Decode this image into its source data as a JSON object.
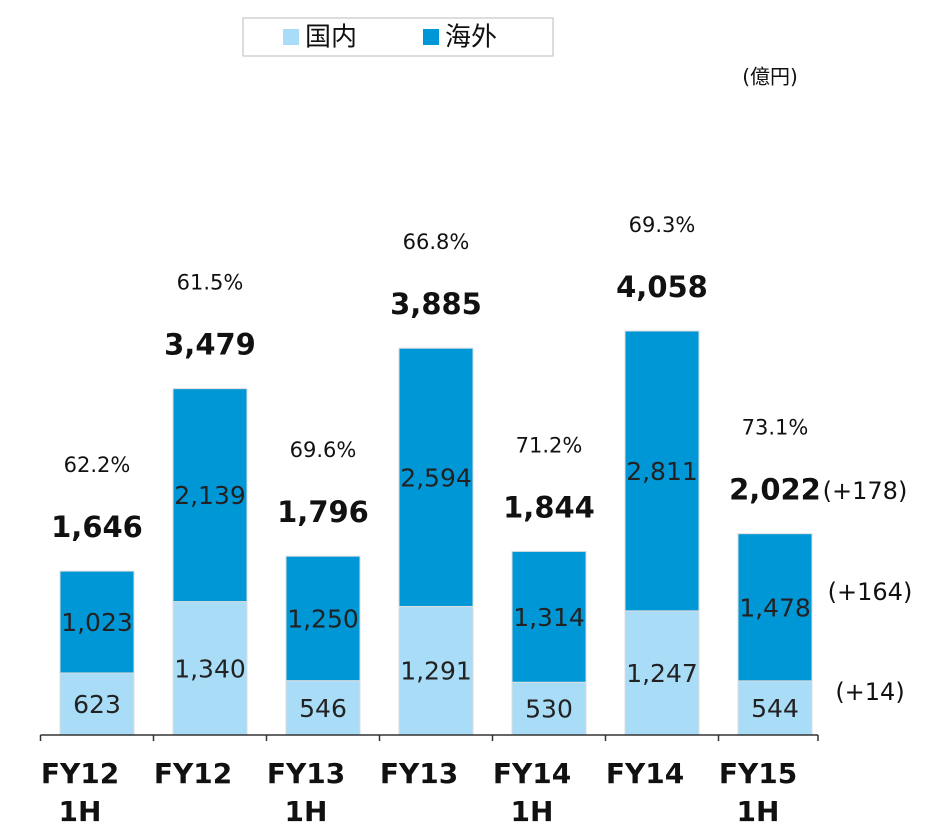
{
  "chart_data": {
    "type": "stacked_bar",
    "categories": [
      "FY12 1H",
      "FY12",
      "FY13 1H",
      "FY13",
      "FY14 1H",
      "FY14",
      "FY15 1H"
    ],
    "series": [
      {
        "name": "国内",
        "color": "#a9dcf6",
        "values": [
          623,
          1340,
          546,
          1291,
          530,
          1247,
          544
        ],
        "value_labels": [
          "623",
          "1,340",
          "546",
          "1,291",
          "530",
          "1,247",
          "544"
        ]
      },
      {
        "name": "海外",
        "color": "#0097d7",
        "values": [
          1023,
          2139,
          1250,
          2594,
          1314,
          2811,
          1478
        ],
        "value_labels": [
          "1,023",
          "2,139",
          "1,250",
          "2,594",
          "1,314",
          "2,811",
          "1,478"
        ]
      }
    ],
    "totals": {
      "values": [
        1646,
        3479,
        1796,
        3885,
        1844,
        4058,
        2022
      ],
      "value_labels": [
        "1,646",
        "3,479",
        "1,796",
        "3,885",
        "1,844",
        "4,058",
        "2,022"
      ]
    },
    "overseas_share": {
      "values": [
        62.2,
        61.5,
        69.6,
        66.8,
        71.2,
        69.3,
        73.1
      ],
      "value_labels": [
        "62.2%",
        "61.5%",
        "69.6%",
        "66.8%",
        "71.2%",
        "69.3%",
        "73.1%"
      ]
    },
    "unit": "(億円)",
    "annotations": [
      "(+178)",
      "(+164)",
      "(+14)"
    ],
    "ylim": [
      0,
      4500
    ]
  }
}
